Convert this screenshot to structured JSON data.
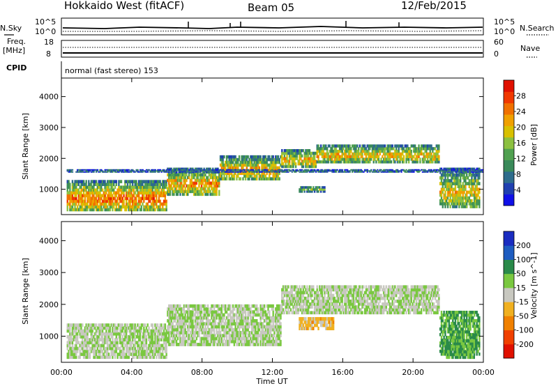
{
  "header": {
    "title": "Hokkaido West (fitACF)",
    "beam": "Beam 05",
    "date": "12/Feb/2015"
  },
  "noise_panel": {
    "left_label": "N.Sky",
    "right_label": "N.Search",
    "left_ticks": [
      "10^5",
      "10^0"
    ],
    "right_ticks": [
      "10^5",
      "10^0"
    ]
  },
  "freq_panel": {
    "left_label_top": "Freq.",
    "left_label_unit": "[MHz]",
    "left_ticks": [
      "18",
      "8"
    ],
    "right_label": "Nave",
    "right_ticks": [
      "60",
      "0"
    ]
  },
  "cpid": {
    "label": "CPID",
    "value": "normal (fast stereo) 153"
  },
  "x_axis": {
    "label": "Time UT",
    "ticks": [
      "00:00",
      "04:00",
      "08:00",
      "12:00",
      "16:00",
      "20:00",
      "00:00"
    ]
  },
  "chart_data": [
    {
      "type": "heatmap",
      "panel": "power",
      "ylabel": "Slant Range [km]",
      "yticks": [
        1000,
        2000,
        3000,
        4000
      ],
      "ylim": [
        180,
        4600
      ],
      "xlim_hours": [
        0,
        24
      ],
      "colorbar_label": "Power [dB]",
      "colorbar_ticks": [
        "4",
        "8",
        "12",
        "16",
        "20",
        "24",
        "28"
      ],
      "colors": [
        "#1010e8",
        "#2040b0",
        "#2e6c8c",
        "#3a8a5a",
        "#50a050",
        "#8cc040",
        "#d8c000",
        "#f0a000",
        "#f07000",
        "#f03800",
        "#e01000"
      ],
      "echo_bands": [
        {
          "t0": 0.3,
          "t1": 6.0,
          "r0": 300,
          "r1": 1300,
          "level": 0.85
        },
        {
          "t0": 6.0,
          "t1": 9.0,
          "r0": 800,
          "r1": 1700,
          "level": 0.75
        },
        {
          "t0": 9.0,
          "t1": 12.5,
          "r0": 1300,
          "r1": 2100,
          "level": 0.75
        },
        {
          "t0": 12.5,
          "t1": 14.5,
          "r0": 1700,
          "r1": 2300,
          "level": 0.7
        },
        {
          "t0": 14.5,
          "t1": 21.5,
          "r0": 1850,
          "r1": 2450,
          "level": 0.7
        },
        {
          "t0": 21.5,
          "t1": 23.8,
          "r0": 400,
          "r1": 1700,
          "level": 0.65
        },
        {
          "t0": 0.3,
          "t1": 24,
          "r0": 1550,
          "r1": 1650,
          "level": 0.25
        },
        {
          "t0": 13.5,
          "t1": 15.0,
          "r0": 900,
          "r1": 1100,
          "level": 0.45
        }
      ]
    },
    {
      "type": "heatmap",
      "panel": "velocity",
      "ylabel": "Slant Range [km]",
      "yticks": [
        1000,
        2000,
        3000,
        4000
      ],
      "ylim": [
        180,
        4600
      ],
      "xlim_hours": [
        0,
        24
      ],
      "colorbar_label": "Velocity [m s^-1]",
      "colorbar_ticks": [
        "200",
        "100",
        "50",
        "15",
        "-15",
        "-50",
        "-100",
        "-200"
      ],
      "colors": [
        "#1a2cc0",
        "#1e5cc0",
        "#2a8a4a",
        "#7ac840",
        "#c8c8c0",
        "#f0b020",
        "#f08000",
        "#f04000",
        "#e01000"
      ],
      "echo_bands": [
        {
          "t0": 0.3,
          "t1": 6.0,
          "r0": 300,
          "r1": 1400,
          "level": 0.45
        },
        {
          "t0": 6.0,
          "t1": 12.5,
          "r0": 700,
          "r1": 2000,
          "level": 0.45
        },
        {
          "t0": 12.5,
          "t1": 21.5,
          "r0": 1700,
          "r1": 2600,
          "level": 0.45
        },
        {
          "t0": 21.5,
          "t1": 23.8,
          "r0": 400,
          "r1": 1800,
          "level": 0.3
        },
        {
          "t0": 13.5,
          "t1": 15.5,
          "r0": 1200,
          "r1": 1600,
          "level": 0.6
        },
        {
          "t0": 21.8,
          "t1": 23.5,
          "r0": 300,
          "r1": 900,
          "level": 0.3
        }
      ]
    }
  ]
}
